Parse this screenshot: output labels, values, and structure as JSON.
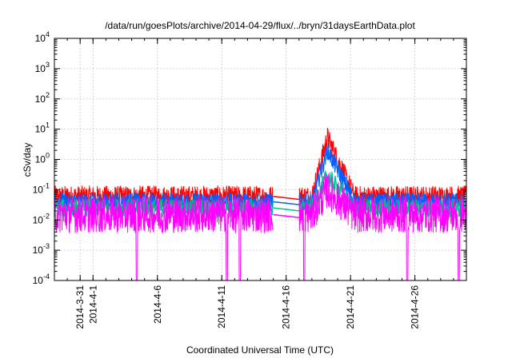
{
  "chart_data": {
    "type": "line",
    "title": "/data/run/goesPlots/archive/2014-04-29/flux/../bryn/31daysEarthData.plot",
    "xlabel": "Coordinated Universal Time (UTC)",
    "ylabel": "cSv/day",
    "y_scale": "log",
    "ylim": [
      0.0001,
      10000
    ],
    "y_ticks": [
      {
        "base": "10",
        "exp": "-4"
      },
      {
        "base": "10",
        "exp": "-3"
      },
      {
        "base": "10",
        "exp": "-2"
      },
      {
        "base": "10",
        "exp": "-1"
      },
      {
        "base": "10",
        "exp": "0"
      },
      {
        "base": "10",
        "exp": "1"
      },
      {
        "base": "10",
        "exp": "2"
      },
      {
        "base": "10",
        "exp": "3"
      },
      {
        "base": "10",
        "exp": "4"
      }
    ],
    "xlim": [
      "2014-03-29",
      "2014-04-30"
    ],
    "x_ticks": [
      "2014-3-31",
      "2014-4-1",
      "2014-4-6",
      "2014-4-11",
      "2014-4-16",
      "2014-4-21",
      "2014-4-26"
    ],
    "grid": true,
    "series": [
      {
        "color": "#ff0000",
        "baseline": 0.06,
        "peak": 5.5,
        "spread": 0.35
      },
      {
        "color": "#0060ff",
        "baseline": 0.04,
        "peak": 2.0,
        "spread": 0.3
      },
      {
        "color": "#00c090",
        "baseline": 0.025,
        "peak": 0.3,
        "spread": 0.3
      },
      {
        "color": "#ff00ff",
        "baseline": 0.015,
        "peak": 0.1,
        "spread": 0.6
      }
    ],
    "data_gap": [
      "2014-04-15",
      "2014-04-17"
    ],
    "event": {
      "start": "2014-04-18",
      "peak": "2014-04-19",
      "end": "2014-04-21"
    },
    "dropouts": [
      "2014-04-04",
      "2014-04-11",
      "2014-04-12",
      "2014-04-17",
      "2014-04-25",
      "2014-04-29"
    ]
  }
}
